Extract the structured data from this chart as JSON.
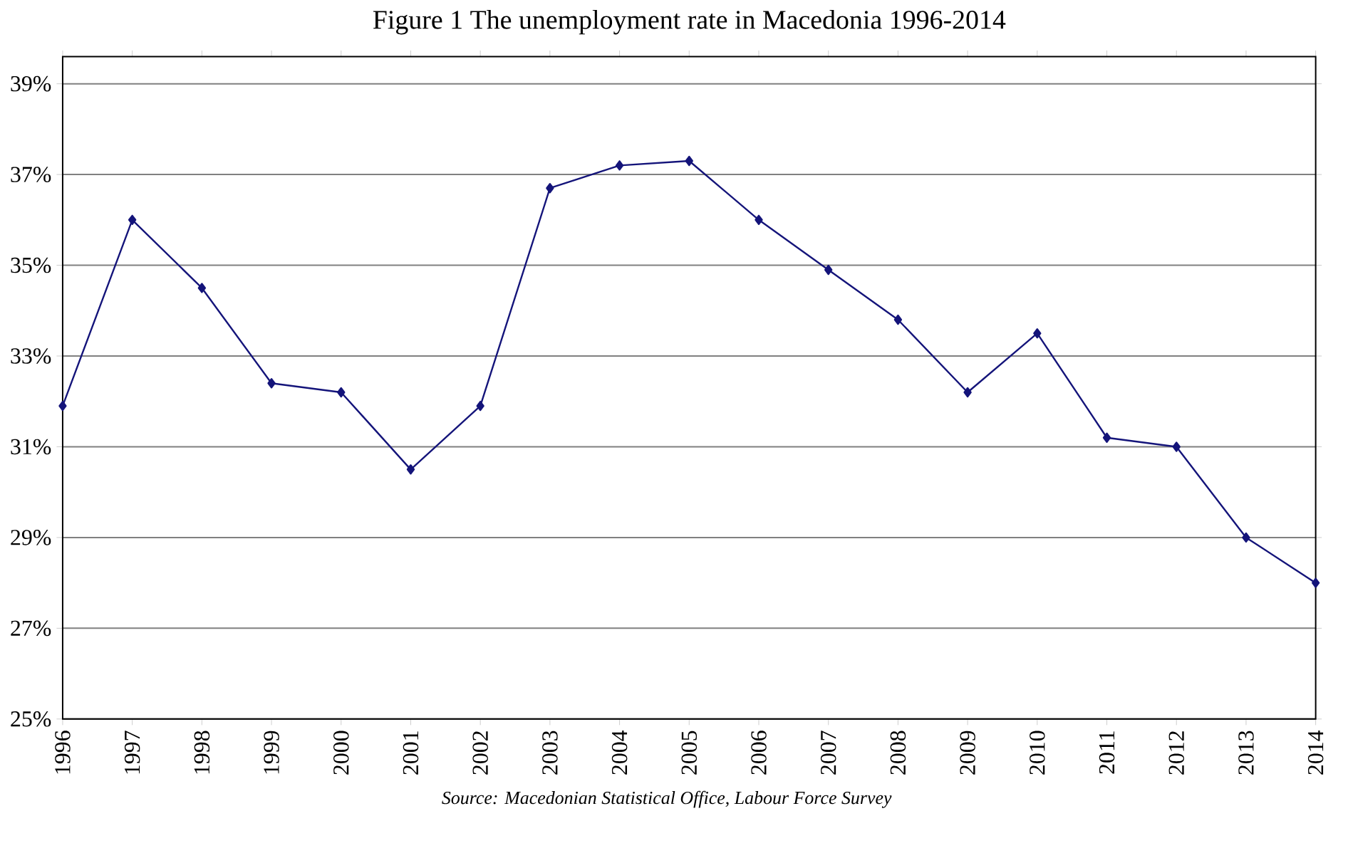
{
  "chart_data": {
    "type": "line",
    "title": "Figure 1 The unemployment rate in Macedonia 1996-2014",
    "categories": [
      "1996",
      "1997",
      "1998",
      "1999",
      "2000",
      "2001",
      "2002",
      "2003",
      "2004",
      "2005",
      "2006",
      "2007",
      "2008",
      "2009",
      "2010",
      "2011",
      "2012",
      "2013",
      "2014"
    ],
    "series": [
      {
        "color": "#14147a",
        "values": [
          31.9,
          36.0,
          34.5,
          32.4,
          32.2,
          30.5,
          31.9,
          36.7,
          37.2,
          37.3,
          36.0,
          34.9,
          33.8,
          32.2,
          33.5,
          31.2,
          31.0,
          29.0,
          28.0
        ]
      }
    ],
    "ylim": [
      25,
      39.6
    ],
    "yticks": [
      {
        "value": 25,
        "label": "25%"
      },
      {
        "value": 27,
        "label": "27%"
      },
      {
        "value": 29,
        "label": "29%"
      },
      {
        "value": 31,
        "label": "31%"
      },
      {
        "value": 33,
        "label": "33%"
      },
      {
        "value": 35,
        "label": "35%"
      },
      {
        "value": 37,
        "label": "37%"
      },
      {
        "value": 39,
        "label": "39%"
      }
    ],
    "grid": "y",
    "marker": "diamond",
    "line_style": "solid",
    "annotations": [
      "Source: Macedonian Statistical Office, Labour Force Survey"
    ]
  }
}
